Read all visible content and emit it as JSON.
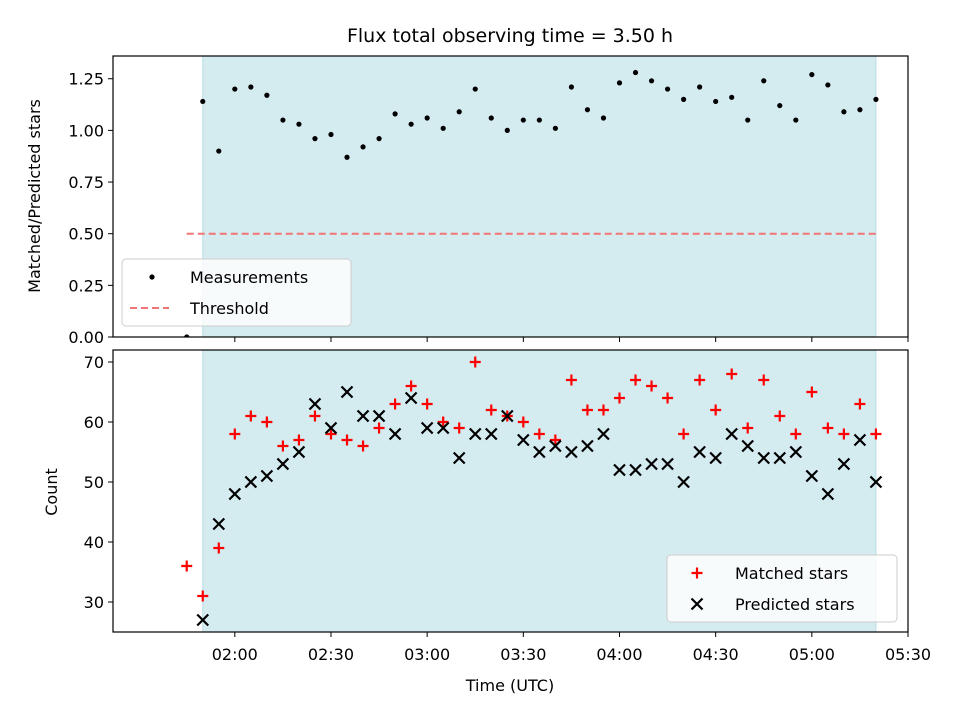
{
  "title": "Flux total observing time = 3.50 h",
  "colors": {
    "shade": "#d4ebf0",
    "shade_edge": "#b9dde6",
    "measure": "#000000",
    "threshold": "#f07575",
    "matched": "#ff0000",
    "predicted": "#000000"
  },
  "chart_data": [
    {
      "type": "scatter",
      "xlabel": "",
      "ylabel": "Matched/Predicted stars",
      "ylim": [
        0,
        1.36
      ],
      "yticks": [
        0.0,
        0.25,
        0.5,
        0.75,
        1.0,
        1.25
      ],
      "ytick_labels": [
        "0.00",
        "0.25",
        "0.50",
        "0.75",
        "1.00",
        "1.25"
      ],
      "xlim": [
        "01:22",
        "05:30"
      ],
      "shaded_span": [
        "01:50",
        "05:20"
      ],
      "legend": "lower-left",
      "series": [
        {
          "name": "Measurements",
          "marker": "dot",
          "x": [
            "01:45",
            "01:50",
            "01:55",
            "02:00",
            "02:05",
            "02:10",
            "02:15",
            "02:20",
            "02:25",
            "02:30",
            "02:35",
            "02:40",
            "02:45",
            "02:50",
            "02:55",
            "03:00",
            "03:05",
            "03:10",
            "03:15",
            "03:20",
            "03:25",
            "03:30",
            "03:35",
            "03:40",
            "03:45",
            "03:50",
            "03:55",
            "04:00",
            "04:05",
            "04:10",
            "04:15",
            "04:20",
            "04:25",
            "04:30",
            "04:35",
            "04:40",
            "04:45",
            "04:50",
            "04:55",
            "05:00",
            "05:05",
            "05:10",
            "05:15",
            "05:20"
          ],
          "y": [
            0.0,
            1.14,
            0.9,
            1.2,
            1.21,
            1.17,
            1.05,
            1.03,
            0.96,
            0.98,
            0.87,
            0.92,
            0.96,
            1.08,
            1.03,
            1.06,
            1.01,
            1.09,
            1.2,
            1.06,
            1.0,
            1.05,
            1.05,
            1.01,
            1.21,
            1.1,
            1.06,
            1.23,
            1.28,
            1.24,
            1.2,
            1.15,
            1.21,
            1.14,
            1.16,
            1.05,
            1.24,
            1.12,
            1.05,
            1.27,
            1.22,
            1.09,
            1.1,
            1.15
          ]
        },
        {
          "name": "Threshold",
          "marker": "dashed-line",
          "x": [
            "01:45",
            "05:20"
          ],
          "y": [
            0.5,
            0.5
          ]
        }
      ]
    },
    {
      "type": "scatter",
      "xlabel": "Time (UTC)",
      "ylabel": "Count",
      "ylim": [
        25,
        72
      ],
      "yticks": [
        30,
        40,
        50,
        60,
        70
      ],
      "ytick_labels": [
        "30",
        "40",
        "50",
        "60",
        "70"
      ],
      "xlim": [
        "01:22",
        "05:30"
      ],
      "xticks": [
        "02:00",
        "02:30",
        "03:00",
        "03:30",
        "04:00",
        "04:30",
        "05:00",
        "05:30"
      ],
      "shaded_span": [
        "01:50",
        "05:20"
      ],
      "legend": "lower-right",
      "series": [
        {
          "name": "Matched stars",
          "marker": "plus",
          "x": [
            "01:45",
            "01:50",
            "01:55",
            "02:00",
            "02:05",
            "02:10",
            "02:15",
            "02:20",
            "02:25",
            "02:30",
            "02:35",
            "02:40",
            "02:45",
            "02:50",
            "02:55",
            "03:00",
            "03:05",
            "03:10",
            "03:15",
            "03:20",
            "03:25",
            "03:30",
            "03:35",
            "03:40",
            "03:45",
            "03:50",
            "03:55",
            "04:00",
            "04:05",
            "04:10",
            "04:15",
            "04:20",
            "04:25",
            "04:30",
            "04:35",
            "04:40",
            "04:45",
            "04:50",
            "04:55",
            "05:00",
            "05:05",
            "05:10",
            "05:15",
            "05:20"
          ],
          "y": [
            36,
            31,
            39,
            58,
            61,
            60,
            56,
            57,
            61,
            58,
            57,
            56,
            59,
            63,
            66,
            63,
            60,
            59,
            70,
            62,
            61,
            60,
            58,
            57,
            67,
            62,
            62,
            64,
            67,
            66,
            64,
            58,
            67,
            62,
            68,
            59,
            67,
            61,
            58,
            65,
            59,
            58,
            63,
            58
          ]
        },
        {
          "name": "Predicted stars",
          "marker": "x",
          "x": [
            "01:50",
            "01:55",
            "02:00",
            "02:05",
            "02:10",
            "02:15",
            "02:20",
            "02:25",
            "02:30",
            "02:35",
            "02:40",
            "02:45",
            "02:50",
            "02:55",
            "03:00",
            "03:05",
            "03:10",
            "03:15",
            "03:20",
            "03:25",
            "03:30",
            "03:35",
            "03:40",
            "03:45",
            "03:50",
            "03:55",
            "04:00",
            "04:05",
            "04:10",
            "04:15",
            "04:20",
            "04:25",
            "04:30",
            "04:35",
            "04:40",
            "04:45",
            "04:50",
            "04:55",
            "05:00",
            "05:05",
            "05:10",
            "05:15",
            "05:20"
          ],
          "y": [
            27,
            43,
            48,
            50,
            51,
            53,
            55,
            63,
            59,
            65,
            61,
            61,
            58,
            64,
            59,
            59,
            54,
            58,
            58,
            61,
            57,
            55,
            56,
            55,
            56,
            58,
            52,
            52,
            53,
            53,
            50,
            55,
            54,
            58,
            56,
            54,
            54,
            55,
            51,
            48,
            53,
            57,
            50
          ]
        }
      ]
    }
  ]
}
